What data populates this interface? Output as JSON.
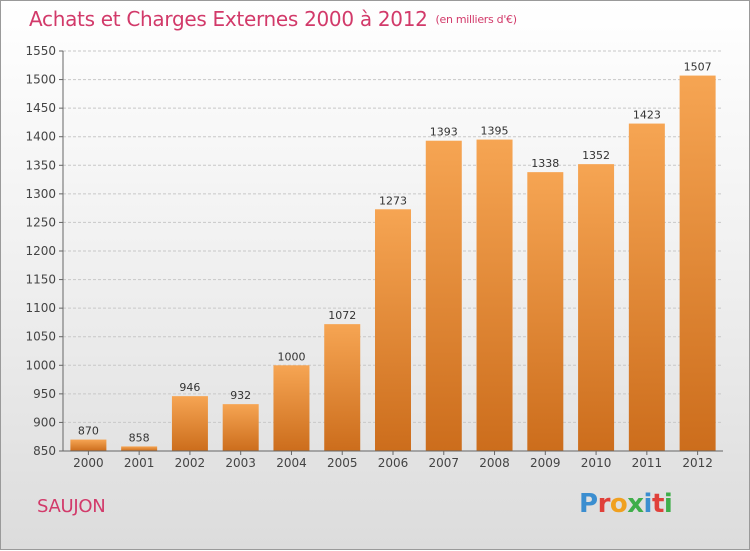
{
  "title": "Achats et Charges Externes 2000 à 2012",
  "unit_note": "(en milliers d'€)",
  "place": "SAUJON",
  "logo": {
    "text": "Proxiti",
    "colors": [
      "#3b8ed0",
      "#e0403a",
      "#f0a020",
      "#3fae4a",
      "#3b8ed0",
      "#e0403a",
      "#3fae4a"
    ]
  },
  "colors": {
    "title": "#d23a6a",
    "bar_light": "#f6a553",
    "bar_dark": "#cc6d1c",
    "grid": "#c8c8c8"
  },
  "chart_data": {
    "type": "bar",
    "title": "Achats et Charges Externes 2000 à 2012",
    "xlabel": "",
    "ylabel": "",
    "categories": [
      "2000",
      "2001",
      "2002",
      "2003",
      "2004",
      "2005",
      "2006",
      "2007",
      "2008",
      "2009",
      "2010",
      "2011",
      "2012"
    ],
    "values": [
      870,
      858,
      946,
      932,
      1000,
      1072,
      1273,
      1393,
      1395,
      1338,
      1352,
      1423,
      1507
    ],
    "ylim": [
      850,
      1550
    ],
    "yticks": [
      850,
      900,
      950,
      1000,
      1050,
      1100,
      1150,
      1200,
      1250,
      1300,
      1350,
      1400,
      1450,
      1500,
      1550
    ],
    "grid": true,
    "data_labels": true
  }
}
